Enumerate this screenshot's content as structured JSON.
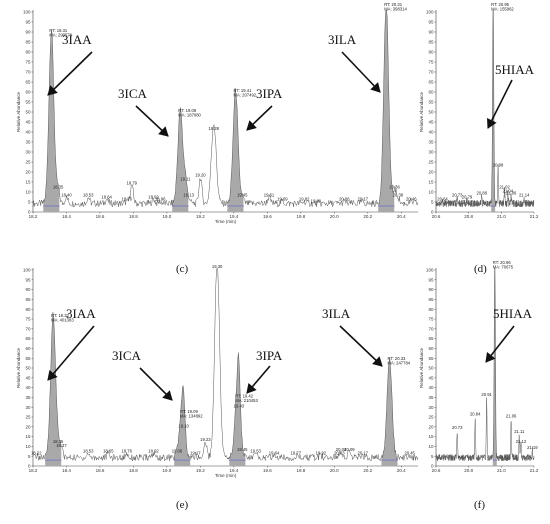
{
  "chart_data": [
    {
      "id": "c",
      "type": "line",
      "panel_label": "(c)",
      "xlabel": "Time (min)",
      "ylabel": "Relative Abundance",
      "xlim": [
        18.2,
        20.5
      ],
      "ylim": [
        0,
        100
      ],
      "x_ticks": [
        "18.2",
        "18.4",
        "18.6",
        "18.8",
        "19.0",
        "19.2",
        "19.4",
        "19.6",
        "19.8",
        "20.0",
        "20.2",
        "20.4"
      ],
      "y_ticks": [
        "0",
        "5",
        "10",
        "15",
        "20",
        "25",
        "30",
        "35",
        "40",
        "45",
        "50",
        "55",
        "60",
        "65",
        "70",
        "75",
        "80",
        "85",
        "90",
        "95",
        "100"
      ],
      "peaks": [
        {
          "rt": 18.31,
          "height": 87,
          "label": "RT: 18.31\nMA: 290578",
          "shaded": true
        },
        {
          "rt": 19.08,
          "height": 47,
          "label": "RT: 19.08\nMA: 187080",
          "shaded": true
        },
        {
          "rt": 19.28,
          "height": 40,
          "label": "19.28",
          "shaded": false
        },
        {
          "rt": 19.41,
          "height": 57,
          "label": "RT: 19.41\nMA: 207492",
          "shaded": true
        },
        {
          "rt": 20.31,
          "height": 100,
          "label": "RT: 20.31\nMA: 398314",
          "shaded": true
        }
      ],
      "minor_labels": [
        {
          "x": 18.35,
          "y": 11,
          "t": "18.35"
        },
        {
          "x": 18.4,
          "y": 7,
          "t": "18.40"
        },
        {
          "x": 18.53,
          "y": 7,
          "t": "18.53"
        },
        {
          "x": 18.64,
          "y": 6,
          "t": "18.64"
        },
        {
          "x": 18.76,
          "y": 5,
          "t": "18.76"
        },
        {
          "x": 18.79,
          "y": 13,
          "t": "18.79"
        },
        {
          "x": 18.92,
          "y": 6,
          "t": "18.92"
        },
        {
          "x": 18.96,
          "y": 5,
          "t": "18.96"
        },
        {
          "x": 19.11,
          "y": 15,
          "t": "19.11"
        },
        {
          "x": 19.13,
          "y": 7,
          "t": "19.13"
        },
        {
          "x": 19.2,
          "y": 17,
          "t": "19.20"
        },
        {
          "x": 19.45,
          "y": 7,
          "t": "19.45"
        },
        {
          "x": 19.61,
          "y": 7,
          "t": "19.61"
        },
        {
          "x": 19.69,
          "y": 5,
          "t": "19.69"
        },
        {
          "x": 19.82,
          "y": 5,
          "t": "19.82"
        },
        {
          "x": 19.89,
          "y": 4,
          "t": "19.89"
        },
        {
          "x": 20.06,
          "y": 5,
          "t": "20.06"
        },
        {
          "x": 20.17,
          "y": 5,
          "t": "20.17"
        },
        {
          "x": 20.36,
          "y": 11,
          "t": "20.36"
        },
        {
          "x": 20.38,
          "y": 7,
          "t": "20.38"
        },
        {
          "x": 20.46,
          "y": 5,
          "t": "20.46"
        }
      ],
      "compounds": [
        "3IAA",
        "3ICA",
        "3IPA",
        "3ILA"
      ]
    },
    {
      "id": "d",
      "type": "line",
      "panel_label": "(d)",
      "ylabel": "Relative Abundance",
      "xlim": [
        20.6,
        21.2
      ],
      "ylim": [
        0,
        100
      ],
      "x_ticks": [
        "20.6",
        "20.8",
        "21.0",
        "21.2"
      ],
      "y_ticks": [
        "0",
        "5",
        "10",
        "15",
        "20",
        "25",
        "30",
        "35",
        "40",
        "45",
        "50",
        "55",
        "60",
        "65",
        "70",
        "75",
        "80",
        "85",
        "90",
        "95",
        "100"
      ],
      "peaks": [
        {
          "rt": 20.95,
          "height": 100,
          "label": "RT: 20.95\nMA: 155962",
          "shaded": true
        }
      ],
      "minor_labels": [
        {
          "x": 20.64,
          "y": 5,
          "t": "20.64"
        },
        {
          "x": 20.73,
          "y": 7,
          "t": "20.73"
        },
        {
          "x": 20.79,
          "y": 6,
          "t": "20.79"
        },
        {
          "x": 20.88,
          "y": 8,
          "t": "20.88"
        },
        {
          "x": 20.98,
          "y": 22,
          "t": "20.98"
        },
        {
          "x": 21.02,
          "y": 11,
          "t": "21.02"
        },
        {
          "x": 21.06,
          "y": 8,
          "t": "21.06"
        },
        {
          "x": 21.04,
          "y": 9,
          "t": "21.04"
        },
        {
          "x": 21.14,
          "y": 7,
          "t": "21.14"
        }
      ],
      "compounds": [
        "5HIAA"
      ]
    },
    {
      "id": "e",
      "type": "line",
      "panel_label": "(e)",
      "xlabel": "Time (min)",
      "ylabel": "Relative Abundance",
      "xlim": [
        18.2,
        20.5
      ],
      "ylim": [
        0,
        100
      ],
      "x_ticks": [
        "18.2",
        "18.4",
        "18.6",
        "18.8",
        "19.0",
        "19.2",
        "19.4",
        "19.6",
        "19.8",
        "20.0",
        "20.2",
        "20.4"
      ],
      "y_ticks": [
        "0",
        "5",
        "10",
        "15",
        "20",
        "25",
        "30",
        "35",
        "40",
        "45",
        "50",
        "55",
        "60",
        "65",
        "70",
        "75",
        "80",
        "85",
        "90",
        "95",
        "100"
      ],
      "peaks": [
        {
          "rt": 18.32,
          "height": 73,
          "label": "RT: 18.32\nMA: 401383",
          "shaded": true
        },
        {
          "rt": 19.09,
          "height": 24,
          "label": "RT: 19.09\nMA: 134892",
          "shaded": true
        },
        {
          "rt": 19.3,
          "height": 100,
          "label": "19.30",
          "shaded": false
        },
        {
          "rt": 19.42,
          "height": 32,
          "label": "RT: 19.42\nMA: 210453",
          "shaded": true
        },
        {
          "rt": 20.33,
          "height": 51,
          "label": "RT: 20.33\nMA: 247784",
          "shaded": true
        }
      ],
      "minor_labels": [
        {
          "x": 18.22,
          "y": 5,
          "t": "18.22"
        },
        {
          "x": 18.35,
          "y": 11,
          "t": "18.35"
        },
        {
          "x": 18.37,
          "y": 9,
          "t": "18.37"
        },
        {
          "x": 18.53,
          "y": 6,
          "t": "18.53"
        },
        {
          "x": 18.65,
          "y": 6,
          "t": "18.65"
        },
        {
          "x": 18.76,
          "y": 6,
          "t": "18.76"
        },
        {
          "x": 18.92,
          "y": 6,
          "t": "18.92"
        },
        {
          "x": 19.06,
          "y": 6,
          "t": "19.06"
        },
        {
          "x": 19.1,
          "y": 19,
          "t": "19.10"
        },
        {
          "x": 19.17,
          "y": 5,
          "t": "19.17"
        },
        {
          "x": 19.23,
          "y": 12,
          "t": "19.23"
        },
        {
          "x": 19.43,
          "y": 29,
          "t": "19.43"
        },
        {
          "x": 19.45,
          "y": 7,
          "t": "19.45"
        },
        {
          "x": 19.53,
          "y": 6,
          "t": "19.53"
        },
        {
          "x": 19.64,
          "y": 5,
          "t": "19.64"
        },
        {
          "x": 19.77,
          "y": 5,
          "t": "19.77"
        },
        {
          "x": 19.92,
          "y": 5,
          "t": "19.92"
        },
        {
          "x": 20.03,
          "y": 5,
          "t": "20.03"
        },
        {
          "x": 20.04,
          "y": 7,
          "t": "20.04"
        },
        {
          "x": 20.09,
          "y": 7,
          "t": "20.09"
        },
        {
          "x": 20.17,
          "y": 5,
          "t": "20.17"
        },
        {
          "x": 20.45,
          "y": 5,
          "t": "20.45"
        }
      ],
      "compounds": [
        "3IAA",
        "3ICA",
        "3IPA",
        "3ILA"
      ]
    },
    {
      "id": "f",
      "type": "line",
      "panel_label": "(f)",
      "ylabel": "Relative Abundance",
      "xlim": [
        20.6,
        21.2
      ],
      "ylim": [
        0,
        100
      ],
      "x_ticks": [
        "20.6",
        "20.8",
        "21.0",
        "21.2"
      ],
      "y_ticks": [
        "0",
        "5",
        "10",
        "15",
        "20",
        "25",
        "30",
        "35",
        "40",
        "45",
        "50",
        "55",
        "60",
        "65",
        "70",
        "75",
        "80",
        "85",
        "90",
        "95",
        "100"
      ],
      "peaks": [
        {
          "rt": 20.96,
          "height": 100,
          "label": "RT: 20.96\nMA: 70675",
          "shaded": true
        }
      ],
      "minor_labels": [
        {
          "x": 20.73,
          "y": 18,
          "t": "20.73"
        },
        {
          "x": 20.84,
          "y": 25,
          "t": "20.84"
        },
        {
          "x": 20.91,
          "y": 35,
          "t": "20.91"
        },
        {
          "x": 21.06,
          "y": 24,
          "t": "21.06"
        },
        {
          "x": 21.11,
          "y": 16,
          "t": "21.11"
        },
        {
          "x": 21.12,
          "y": 11,
          "t": "21.12"
        },
        {
          "x": 21.19,
          "y": 8,
          "t": "21.19"
        }
      ],
      "compounds": [
        "5HIAA"
      ]
    }
  ],
  "colors": {
    "shade": "#a9a9a9",
    "line": "#555555",
    "baseline": "#6e6ec8"
  }
}
